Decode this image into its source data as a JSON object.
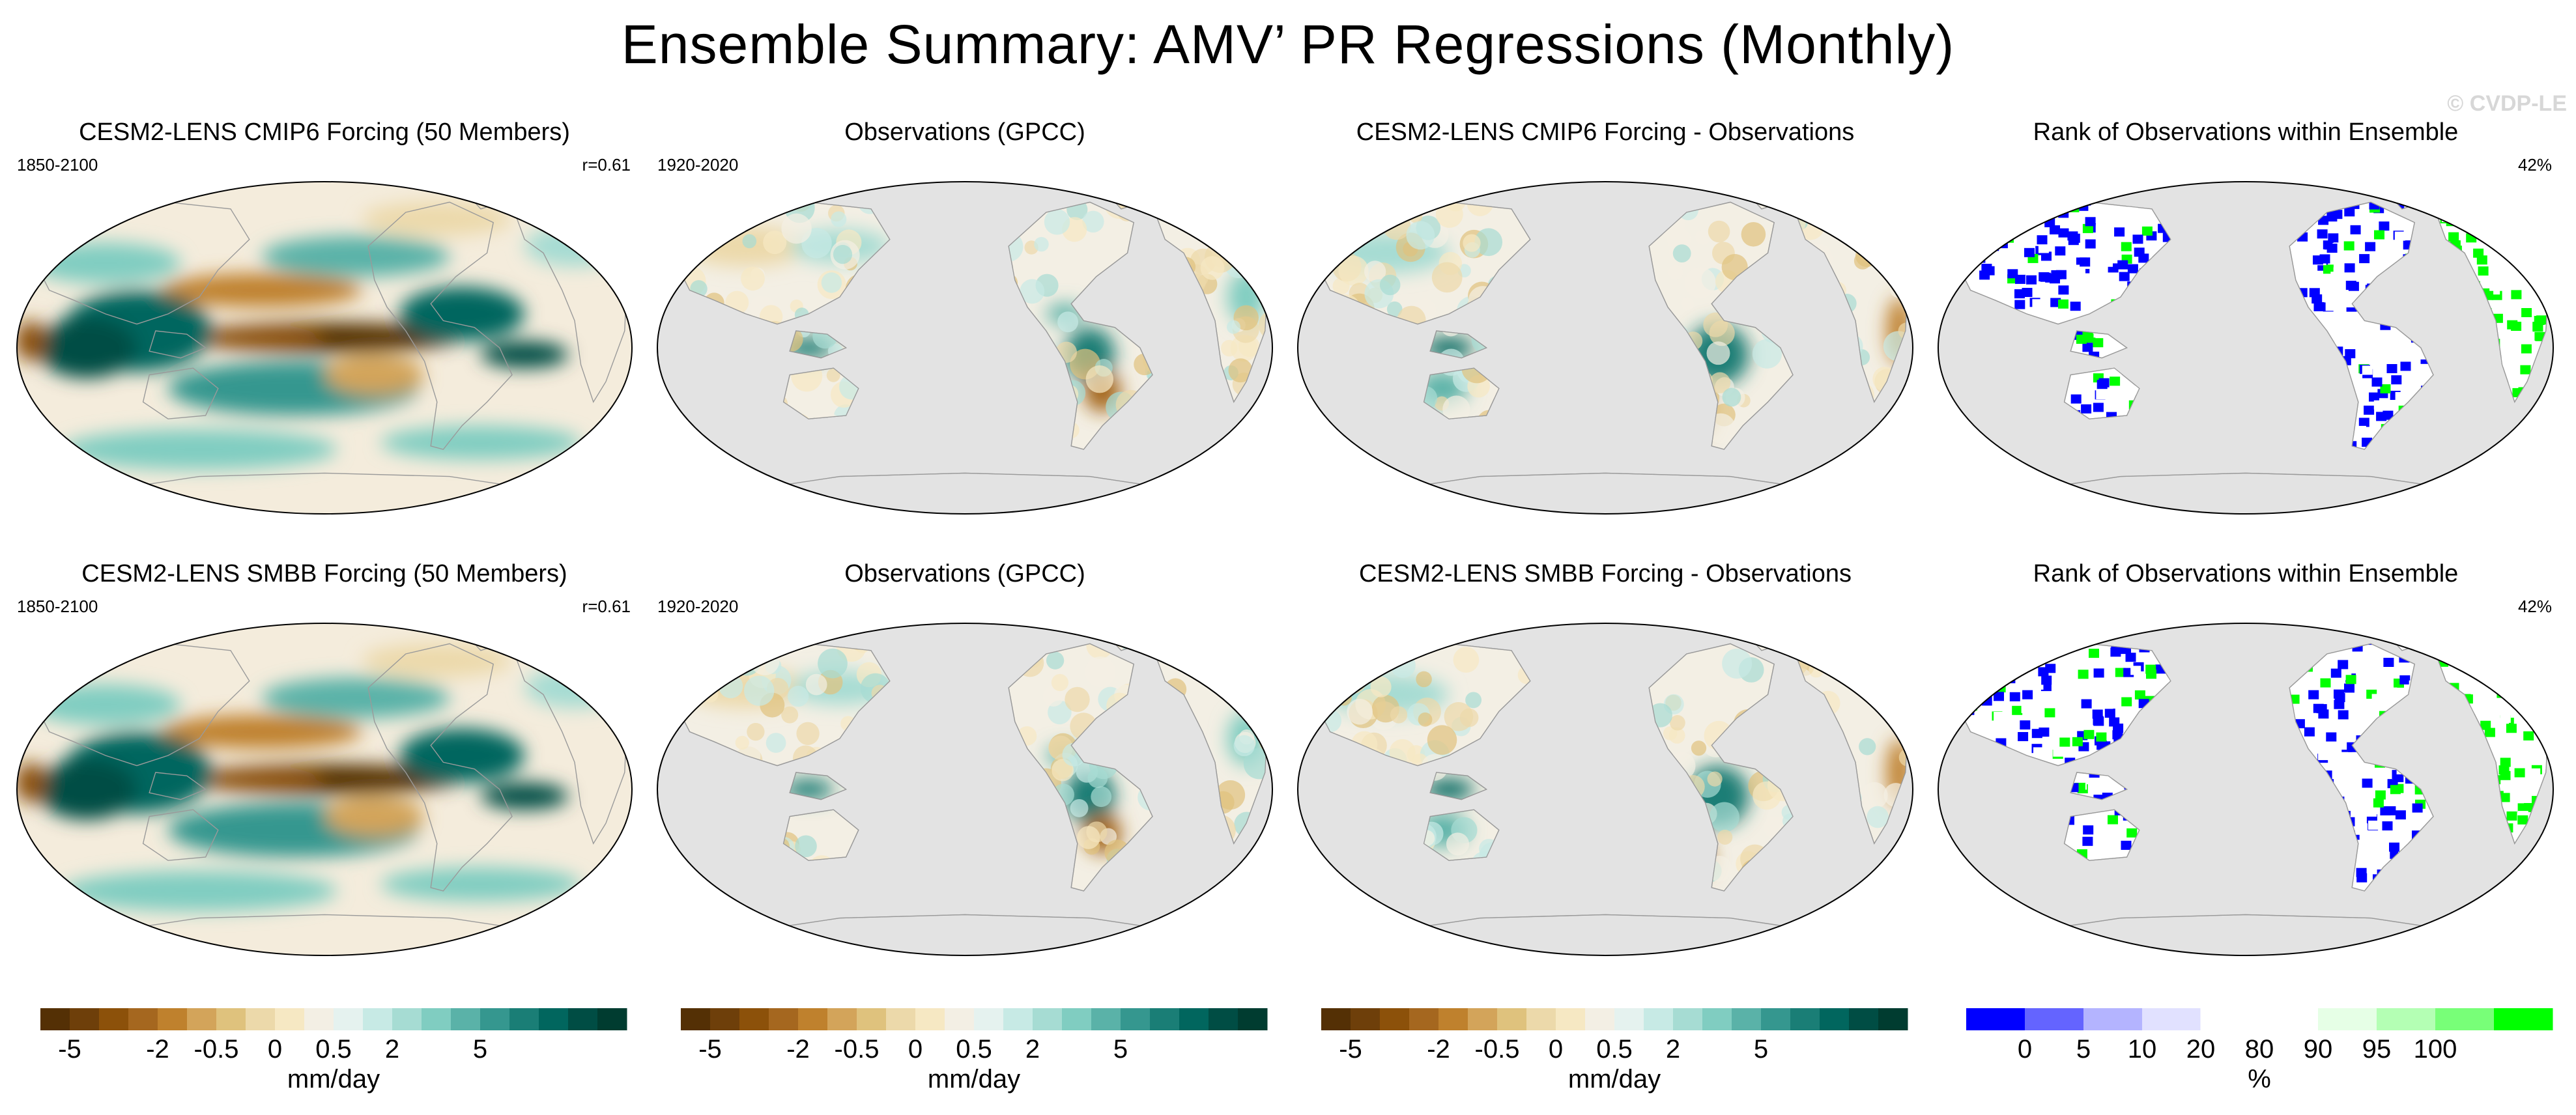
{
  "title": "Ensemble Summary: AMV’ PR Regressions (Monthly)",
  "watermark": "© CVDP-LE",
  "colors": {
    "ocean_gray": "#e3e3e3",
    "coast": "#9a9a9a",
    "rank_blue": "#0000ff",
    "rank_green": "#00ff00"
  },
  "chart_data": [
    {
      "type": "heatmap",
      "row": 0,
      "col": 0,
      "kind": "model",
      "title": "CESM2-LENS CMIP6 Forcing (50 Members)",
      "left_label": "1850-2100",
      "right_label": "r=0.61",
      "units": "mm/day"
    },
    {
      "type": "heatmap",
      "row": 0,
      "col": 1,
      "kind": "obs",
      "title": "Observations (GPCC)",
      "left_label": "1920-2020",
      "right_label": "",
      "units": "mm/day"
    },
    {
      "type": "heatmap",
      "row": 0,
      "col": 2,
      "kind": "diff",
      "title": "CESM2-LENS CMIP6 Forcing - Observations",
      "left_label": "",
      "right_label": "",
      "units": "mm/day"
    },
    {
      "type": "heatmap",
      "row": 0,
      "col": 3,
      "kind": "rank",
      "title": "Rank of Observations within Ensemble",
      "left_label": "",
      "right_label": "42%",
      "units": "%"
    },
    {
      "type": "heatmap",
      "row": 1,
      "col": 0,
      "kind": "model",
      "title": "CESM2-LENS SMBB Forcing (50 Members)",
      "left_label": "1850-2100",
      "right_label": "r=0.61",
      "units": "mm/day"
    },
    {
      "type": "heatmap",
      "row": 1,
      "col": 1,
      "kind": "obs",
      "title": "Observations (GPCC)",
      "left_label": "1920-2020",
      "right_label": "",
      "units": "mm/day"
    },
    {
      "type": "heatmap",
      "row": 1,
      "col": 2,
      "kind": "diff",
      "title": "CESM2-LENS SMBB Forcing - Observations",
      "left_label": "",
      "right_label": "",
      "units": "mm/day"
    },
    {
      "type": "heatmap",
      "row": 1,
      "col": 3,
      "kind": "rank",
      "title": "Rank of Observations within Ensemble",
      "left_label": "",
      "right_label": "42%",
      "units": "%"
    }
  ],
  "colorbars": [
    {
      "units": "mm/day",
      "levels": [
        -5,
        -4,
        -3,
        -2,
        -1,
        -0.5,
        -0.2,
        0,
        0.2,
        0.5,
        1,
        2,
        3,
        4,
        5
      ],
      "tick_labels": [
        "-5",
        "-2",
        "-0.5",
        "0",
        "0.5",
        "2",
        "5"
      ],
      "colors": [
        "#543005",
        "#6e3f0a",
        "#8c510a",
        "#a5671f",
        "#bf812d",
        "#d3a45a",
        "#dfc27d",
        "#ecd9aa",
        "#f6e8c3",
        "#f3efe4",
        "#e5f2ef",
        "#c7eae5",
        "#a6dcd3",
        "#80cdc1",
        "#5ab2a8",
        "#35978f",
        "#1a7e76",
        "#01665e",
        "#004d44",
        "#003c30"
      ]
    },
    {
      "units": "mm/day",
      "levels": [
        -5,
        -4,
        -3,
        -2,
        -1,
        -0.5,
        -0.2,
        0,
        0.2,
        0.5,
        1,
        2,
        3,
        4,
        5
      ],
      "tick_labels": [
        "-5",
        "-2",
        "-0.5",
        "0",
        "0.5",
        "2",
        "5"
      ],
      "colors": [
        "#543005",
        "#6e3f0a",
        "#8c510a",
        "#a5671f",
        "#bf812d",
        "#d3a45a",
        "#dfc27d",
        "#ecd9aa",
        "#f6e8c3",
        "#f3efe4",
        "#e5f2ef",
        "#c7eae5",
        "#a6dcd3",
        "#80cdc1",
        "#5ab2a8",
        "#35978f",
        "#1a7e76",
        "#01665e",
        "#004d44",
        "#003c30"
      ]
    },
    {
      "units": "mm/day",
      "levels": [
        -5,
        -4,
        -3,
        -2,
        -1,
        -0.5,
        -0.2,
        0,
        0.2,
        0.5,
        1,
        2,
        3,
        4,
        5
      ],
      "tick_labels": [
        "-5",
        "-2",
        "-0.5",
        "0",
        "0.5",
        "2",
        "5"
      ],
      "colors": [
        "#543005",
        "#6e3f0a",
        "#8c510a",
        "#a5671f",
        "#bf812d",
        "#d3a45a",
        "#dfc27d",
        "#ecd9aa",
        "#f6e8c3",
        "#f3efe4",
        "#e5f2ef",
        "#c7eae5",
        "#a6dcd3",
        "#80cdc1",
        "#5ab2a8",
        "#35978f",
        "#1a7e76",
        "#01665e",
        "#004d44",
        "#003c30"
      ]
    },
    {
      "units": "%",
      "levels": [
        0,
        5,
        10,
        20,
        80,
        90,
        95,
        100
      ],
      "tick_labels": [
        "0",
        "5",
        "10",
        "20",
        "80",
        "90",
        "95",
        "100"
      ],
      "colors": [
        "#0000ff",
        "#6464ff",
        "#b4b4ff",
        "#e1e1ff",
        "#ffffff",
        "#ffffff",
        "#e6ffe6",
        "#b4ffb4",
        "#78ff78",
        "#00ff00"
      ]
    }
  ]
}
